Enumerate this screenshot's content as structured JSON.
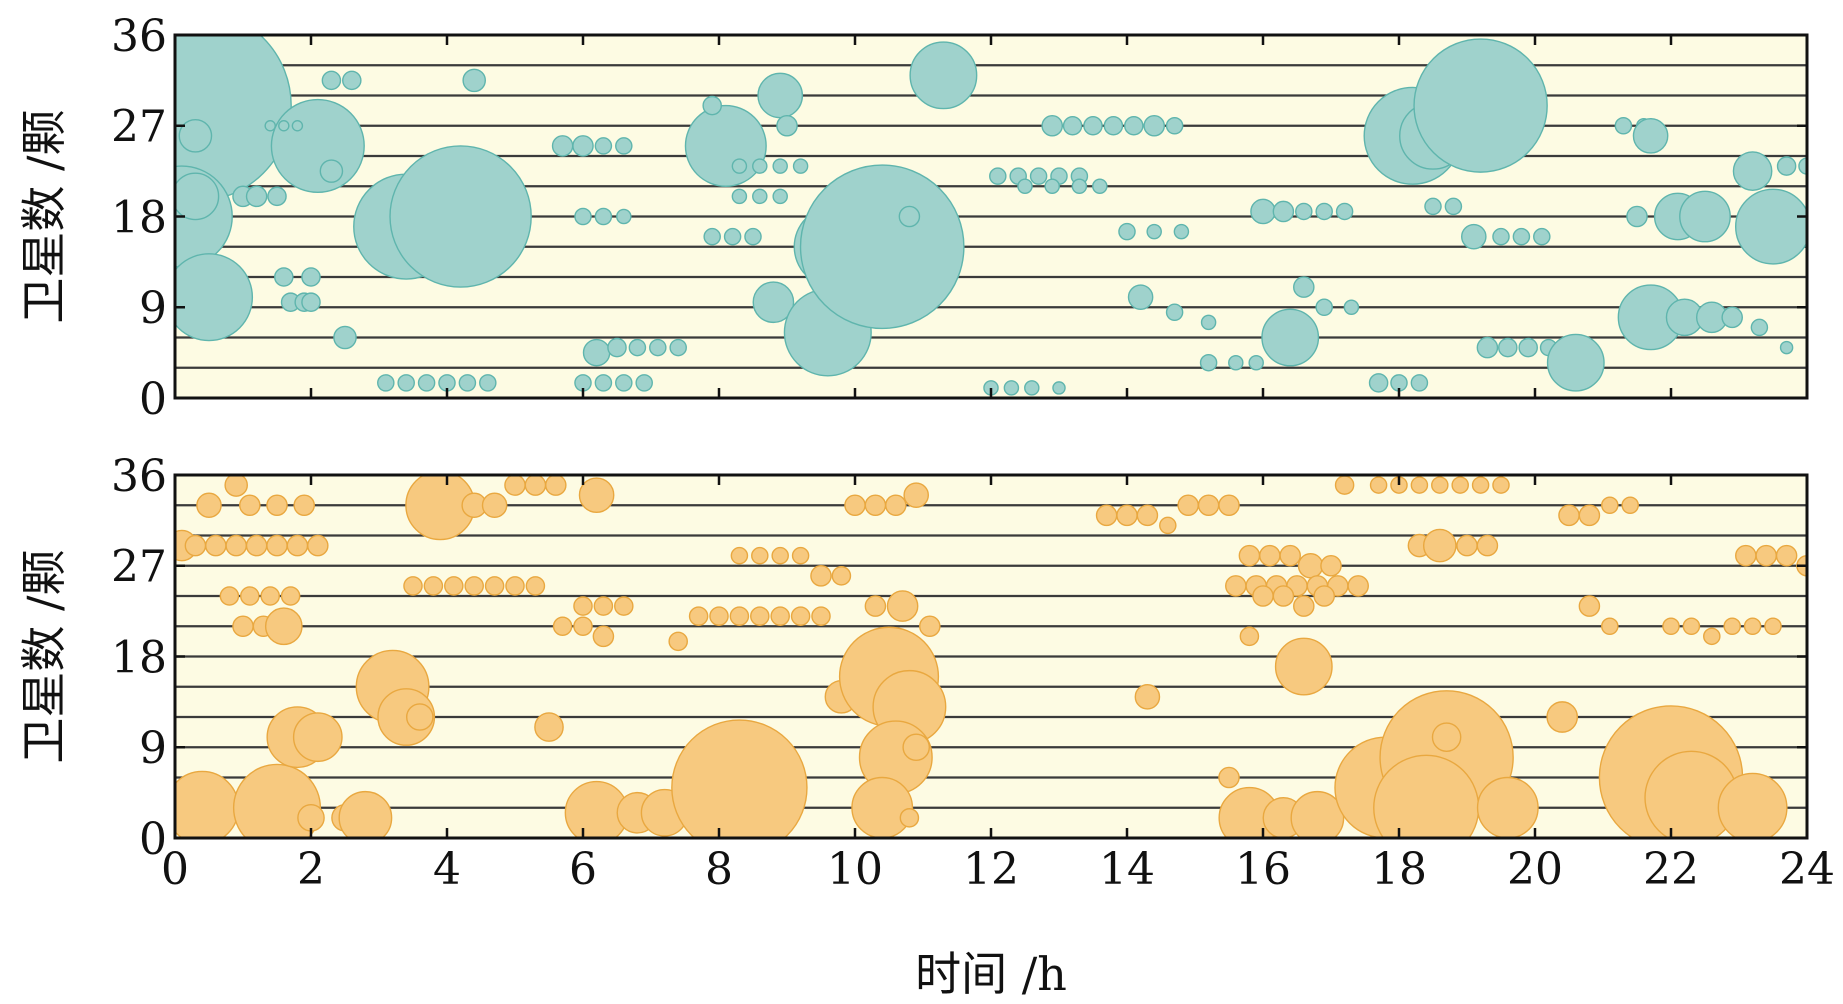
{
  "chart_data": [
    {
      "type": "scatter",
      "panel": "top",
      "xlabel": "",
      "ylabel": "卫星数 /颗",
      "xlim": [
        0,
        24
      ],
      "ylim": [
        0,
        36
      ],
      "yticks": [
        0,
        9,
        18,
        27,
        36
      ],
      "background": "#fdfbe3",
      "marker_fill": "#9fd2cc",
      "marker_stroke": "#5fb5ad",
      "grid_lines_y": [
        3,
        6,
        9,
        12,
        15,
        18,
        21,
        24,
        27,
        30,
        33
      ],
      "points": [
        [
          0.3,
          29,
          9.5
        ],
        [
          0.1,
          18,
          5
        ],
        [
          0.3,
          20,
          2.3
        ],
        [
          0.3,
          26,
          1.6
        ],
        [
          0.5,
          10,
          4.3
        ],
        [
          1.0,
          20,
          1.0
        ],
        [
          1.2,
          20,
          1.0
        ],
        [
          1.5,
          20,
          0.9
        ],
        [
          1.6,
          12,
          0.9
        ],
        [
          1.7,
          9.5,
          0.9
        ],
        [
          1.9,
          9.5,
          0.9
        ],
        [
          2.0,
          12,
          0.9
        ],
        [
          2.0,
          9.5,
          0.9
        ],
        [
          2.1,
          25,
          4.6
        ],
        [
          2.3,
          22.5,
          1.1
        ],
        [
          2.3,
          31.5,
          0.9
        ],
        [
          2.6,
          31.5,
          0.9
        ],
        [
          2.5,
          6,
          1.1
        ],
        [
          1.4,
          27,
          0.5
        ],
        [
          1.6,
          27,
          0.5
        ],
        [
          1.8,
          27,
          0.5
        ],
        [
          3.4,
          17,
          5.2
        ],
        [
          4.2,
          18,
          7.0
        ],
        [
          4.4,
          31.5,
          1.1
        ],
        [
          3.1,
          1.5,
          0.8
        ],
        [
          3.4,
          1.5,
          0.8
        ],
        [
          3.7,
          1.5,
          0.8
        ],
        [
          4.0,
          1.5,
          0.8
        ],
        [
          4.3,
          1.5,
          0.8
        ],
        [
          4.6,
          1.5,
          0.8
        ],
        [
          5.7,
          25,
          1.0
        ],
        [
          6.0,
          25,
          1.0
        ],
        [
          6.3,
          25,
          0.8
        ],
        [
          6.6,
          25,
          0.8
        ],
        [
          6.0,
          18,
          0.8
        ],
        [
          6.3,
          18,
          0.8
        ],
        [
          6.6,
          18,
          0.7
        ],
        [
          6.2,
          4.5,
          1.3
        ],
        [
          6.5,
          5,
          0.9
        ],
        [
          6.8,
          5,
          0.8
        ],
        [
          7.1,
          5,
          0.8
        ],
        [
          7.4,
          5,
          0.8
        ],
        [
          6.0,
          1.5,
          0.8
        ],
        [
          6.3,
          1.5,
          0.8
        ],
        [
          6.6,
          1.5,
          0.8
        ],
        [
          6.9,
          1.5,
          0.8
        ],
        [
          8.1,
          25,
          4.0
        ],
        [
          8.9,
          30,
          2.2
        ],
        [
          9.0,
          27,
          1.0
        ],
        [
          7.9,
          29,
          0.9
        ],
        [
          8.8,
          9.5,
          2.0
        ],
        [
          9.7,
          15,
          4.0
        ],
        [
          9.6,
          6.5,
          4.3
        ],
        [
          10.4,
          15,
          8.1
        ],
        [
          10.8,
          18,
          1.0
        ],
        [
          8.3,
          23,
          0.7
        ],
        [
          8.6,
          23,
          0.7
        ],
        [
          8.9,
          23,
          0.7
        ],
        [
          9.2,
          23,
          0.7
        ],
        [
          8.3,
          20,
          0.7
        ],
        [
          8.6,
          20,
          0.7
        ],
        [
          8.9,
          20,
          0.7
        ],
        [
          7.9,
          16,
          0.8
        ],
        [
          8.2,
          16,
          0.8
        ],
        [
          8.5,
          16,
          0.8
        ],
        [
          11.3,
          32,
          3.3
        ],
        [
          12.1,
          22,
          0.8
        ],
        [
          12.4,
          22,
          0.8
        ],
        [
          12.7,
          22,
          0.8
        ],
        [
          13.0,
          22,
          0.8
        ],
        [
          13.3,
          22,
          0.8
        ],
        [
          12.5,
          21,
          0.7
        ],
        [
          12.9,
          21,
          0.7
        ],
        [
          13.3,
          21,
          0.7
        ],
        [
          13.6,
          21,
          0.7
        ],
        [
          12.9,
          27,
          1.0
        ],
        [
          13.2,
          27,
          0.9
        ],
        [
          13.5,
          27,
          0.9
        ],
        [
          13.8,
          27,
          0.9
        ],
        [
          14.1,
          27,
          0.9
        ],
        [
          14.4,
          27,
          1.0
        ],
        [
          14.7,
          27,
          0.8
        ],
        [
          14.2,
          10,
          1.2
        ],
        [
          14.7,
          8.5,
          0.8
        ],
        [
          15.2,
          7.5,
          0.7
        ],
        [
          12.0,
          1,
          0.7
        ],
        [
          12.3,
          1,
          0.7
        ],
        [
          12.6,
          1,
          0.7
        ],
        [
          13.0,
          1,
          0.6
        ],
        [
          14.0,
          16.5,
          0.8
        ],
        [
          14.4,
          16.5,
          0.7
        ],
        [
          14.8,
          16.5,
          0.7
        ],
        [
          15.2,
          3.5,
          0.8
        ],
        [
          15.6,
          3.5,
          0.7
        ],
        [
          15.9,
          3.5,
          0.7
        ],
        [
          16.0,
          18.5,
          1.2
        ],
        [
          16.3,
          18.5,
          1.0
        ],
        [
          16.6,
          18.5,
          0.8
        ],
        [
          16.9,
          18.5,
          0.8
        ],
        [
          17.2,
          18.5,
          0.8
        ],
        [
          16.4,
          6,
          2.8
        ],
        [
          16.6,
          11,
          1.0
        ],
        [
          16.9,
          9,
          0.8
        ],
        [
          17.3,
          9,
          0.7
        ],
        [
          17.7,
          1.5,
          0.9
        ],
        [
          18.0,
          1.5,
          0.8
        ],
        [
          18.3,
          1.5,
          0.8
        ],
        [
          18.2,
          26,
          4.8
        ],
        [
          18.5,
          26,
          3.3
        ],
        [
          19.2,
          29,
          6.6
        ],
        [
          18.5,
          19,
          0.8
        ],
        [
          18.8,
          19,
          0.8
        ],
        [
          19.1,
          16,
          1.2
        ],
        [
          19.5,
          16,
          0.8
        ],
        [
          19.8,
          16,
          0.8
        ],
        [
          20.1,
          16,
          0.8
        ],
        [
          19.3,
          5,
          1.0
        ],
        [
          19.6,
          5,
          0.9
        ],
        [
          19.9,
          5,
          0.9
        ],
        [
          20.2,
          5,
          0.8
        ],
        [
          20.6,
          3.5,
          2.8
        ],
        [
          21.3,
          27,
          0.8
        ],
        [
          21.6,
          27,
          0.7
        ],
        [
          21.7,
          26,
          1.7
        ],
        [
          21.5,
          18,
          1.0
        ],
        [
          22.1,
          18,
          2.3
        ],
        [
          22.5,
          18,
          2.5
        ],
        [
          23.5,
          17,
          3.7
        ],
        [
          23.2,
          22.5,
          1.9
        ],
        [
          23.7,
          23,
          0.9
        ],
        [
          24.0,
          23,
          0.8
        ],
        [
          21.7,
          8,
          3.2
        ],
        [
          22.2,
          8,
          1.8
        ],
        [
          22.6,
          8,
          1.5
        ],
        [
          22.9,
          8,
          1.0
        ],
        [
          23.3,
          7,
          0.8
        ],
        [
          23.7,
          5,
          0.6
        ]
      ]
    },
    {
      "type": "scatter",
      "panel": "bottom",
      "xlabel": "时间 /h",
      "ylabel": "卫星数 /颗",
      "xlim": [
        0,
        24
      ],
      "ylim": [
        0,
        36
      ],
      "xticks": [
        0,
        2,
        4,
        6,
        8,
        10,
        12,
        14,
        16,
        18,
        20,
        22,
        24
      ],
      "yticks": [
        0,
        9,
        18,
        27,
        36
      ],
      "background": "#fdfbe3",
      "marker_fill": "#f7c97f",
      "marker_stroke": "#e9a840",
      "grid_lines_y": [
        3,
        6,
        9,
        12,
        15,
        18,
        21,
        24,
        27,
        30,
        33
      ],
      "points": [
        [
          0.4,
          3,
          3.6
        ],
        [
          1.5,
          3,
          4.3
        ],
        [
          2.0,
          2,
          1.3
        ],
        [
          2.5,
          2,
          1.3
        ],
        [
          2.8,
          2,
          2.6
        ],
        [
          1.8,
          10,
          3.0
        ],
        [
          2.1,
          10,
          2.4
        ],
        [
          3.2,
          15,
          3.6
        ],
        [
          3.4,
          12,
          2.8
        ],
        [
          3.6,
          12,
          1.3
        ],
        [
          0.1,
          29,
          1.5
        ],
        [
          0.3,
          29,
          1.0
        ],
        [
          0.6,
          29,
          1.0
        ],
        [
          0.9,
          29,
          1.0
        ],
        [
          1.2,
          29,
          1.0
        ],
        [
          1.5,
          29,
          1.0
        ],
        [
          1.8,
          29,
          1.0
        ],
        [
          2.1,
          29,
          1.0
        ],
        [
          0.5,
          33,
          1.2
        ],
        [
          0.9,
          35,
          1.1
        ],
        [
          1.1,
          33,
          1.0
        ],
        [
          1.5,
          33,
          1.0
        ],
        [
          1.9,
          33,
          1.0
        ],
        [
          1.0,
          21,
          1.0
        ],
        [
          1.3,
          21,
          1.0
        ],
        [
          1.6,
          21,
          1.8
        ],
        [
          0.8,
          24,
          0.9
        ],
        [
          1.1,
          24,
          0.9
        ],
        [
          1.4,
          24,
          0.9
        ],
        [
          1.7,
          24,
          0.9
        ],
        [
          3.5,
          25,
          0.9
        ],
        [
          3.8,
          25,
          0.9
        ],
        [
          4.1,
          25,
          0.9
        ],
        [
          4.4,
          25,
          0.9
        ],
        [
          4.7,
          25,
          0.9
        ],
        [
          5.0,
          25,
          0.9
        ],
        [
          5.3,
          25,
          0.9
        ],
        [
          3.9,
          33,
          3.4
        ],
        [
          4.4,
          33,
          1.2
        ],
        [
          4.7,
          33,
          1.2
        ],
        [
          5.0,
          35,
          1.0
        ],
        [
          5.3,
          35,
          1.0
        ],
        [
          5.6,
          35,
          1.0
        ],
        [
          6.2,
          34,
          1.7
        ],
        [
          5.5,
          11,
          1.4
        ],
        [
          5.7,
          21,
          0.9
        ],
        [
          6.0,
          21,
          0.9
        ],
        [
          6.3,
          20,
          1.0
        ],
        [
          6.0,
          23,
          0.9
        ],
        [
          6.3,
          23,
          0.9
        ],
        [
          6.6,
          23,
          0.9
        ],
        [
          6.2,
          2.5,
          3.1
        ],
        [
          6.8,
          2.5,
          2.0
        ],
        [
          7.2,
          2.5,
          2.3
        ],
        [
          8.3,
          5,
          6.7
        ],
        [
          9.8,
          14,
          1.6
        ],
        [
          7.4,
          19.5,
          0.9
        ],
        [
          7.7,
          22,
          0.9
        ],
        [
          8.0,
          22,
          0.9
        ],
        [
          8.3,
          22,
          0.9
        ],
        [
          8.6,
          22,
          0.9
        ],
        [
          8.9,
          22,
          0.9
        ],
        [
          9.2,
          22,
          0.9
        ],
        [
          9.5,
          22,
          0.9
        ],
        [
          8.3,
          28,
          0.8
        ],
        [
          8.6,
          28,
          0.8
        ],
        [
          8.9,
          28,
          0.8
        ],
        [
          9.2,
          28,
          0.8
        ],
        [
          9.5,
          26,
          1.0
        ],
        [
          9.8,
          26,
          0.9
        ],
        [
          10.5,
          16,
          4.9
        ],
        [
          10.8,
          13,
          3.6
        ],
        [
          10.6,
          8,
          3.6
        ],
        [
          10.4,
          3,
          3.0
        ],
        [
          10.9,
          9,
          1.3
        ],
        [
          10.8,
          2,
          0.9
        ],
        [
          10.0,
          33,
          1.0
        ],
        [
          10.3,
          33,
          1.0
        ],
        [
          10.6,
          33,
          1.0
        ],
        [
          10.9,
          34,
          1.2
        ],
        [
          10.7,
          23,
          1.5
        ],
        [
          10.3,
          23,
          1.0
        ],
        [
          11.1,
          21,
          1.0
        ],
        [
          14.3,
          14,
          1.2
        ],
        [
          15.5,
          6,
          1.0
        ],
        [
          15.8,
          2,
          3.0
        ],
        [
          16.3,
          2,
          2.0
        ],
        [
          16.8,
          2,
          2.6
        ],
        [
          16.6,
          17,
          2.8
        ],
        [
          15.8,
          20,
          0.9
        ],
        [
          13.7,
          32,
          1.0
        ],
        [
          14.0,
          32,
          1.0
        ],
        [
          14.3,
          32,
          1.0
        ],
        [
          14.6,
          31,
          0.8
        ],
        [
          14.9,
          33,
          1.0
        ],
        [
          15.2,
          33,
          1.0
        ],
        [
          15.5,
          33,
          1.0
        ],
        [
          15.8,
          28,
          1.0
        ],
        [
          16.1,
          28,
          1.0
        ],
        [
          16.4,
          28,
          1.0
        ],
        [
          16.7,
          27,
          1.2
        ],
        [
          17.0,
          27,
          1.0
        ],
        [
          15.6,
          25,
          1.0
        ],
        [
          15.9,
          25,
          1.0
        ],
        [
          16.2,
          25,
          1.0
        ],
        [
          16.5,
          25,
          1.0
        ],
        [
          16.8,
          25,
          1.0
        ],
        [
          17.1,
          25,
          1.0
        ],
        [
          17.4,
          25,
          1.0
        ],
        [
          16.0,
          24,
          1.0
        ],
        [
          16.3,
          24,
          1.0
        ],
        [
          16.6,
          23,
          1.0
        ],
        [
          16.9,
          24,
          1.0
        ],
        [
          17.2,
          35,
          0.9
        ],
        [
          17.7,
          35,
          0.8
        ],
        [
          18.0,
          35,
          0.8
        ],
        [
          18.3,
          35,
          0.8
        ],
        [
          18.6,
          35,
          0.8
        ],
        [
          18.9,
          35,
          0.8
        ],
        [
          19.2,
          35,
          0.8
        ],
        [
          19.5,
          35,
          0.8
        ],
        [
          17.8,
          5,
          5.0
        ],
        [
          18.7,
          8,
          6.6
        ],
        [
          18.4,
          3,
          5.2
        ],
        [
          19.6,
          3,
          3.0
        ],
        [
          18.7,
          10,
          1.4
        ],
        [
          18.3,
          29,
          1.1
        ],
        [
          18.6,
          29,
          1.6
        ],
        [
          19.0,
          29,
          1.0
        ],
        [
          19.3,
          29,
          1.0
        ],
        [
          20.4,
          12,
          1.5
        ],
        [
          22.0,
          6,
          7.1
        ],
        [
          22.3,
          4,
          4.6
        ],
        [
          23.2,
          3,
          3.4
        ],
        [
          20.8,
          23,
          1.0
        ],
        [
          21.1,
          21,
          0.8
        ],
        [
          20.5,
          32,
          1.0
        ],
        [
          20.8,
          32,
          1.0
        ],
        [
          21.1,
          33,
          0.8
        ],
        [
          21.4,
          33,
          0.8
        ],
        [
          23.1,
          28,
          1.0
        ],
        [
          23.4,
          28,
          1.0
        ],
        [
          23.7,
          28,
          1.0
        ],
        [
          24.0,
          27,
          1.0
        ],
        [
          22.0,
          21,
          0.8
        ],
        [
          22.3,
          21,
          0.8
        ],
        [
          22.6,
          20,
          0.8
        ],
        [
          22.9,
          21,
          0.8
        ],
        [
          23.2,
          21,
          0.8
        ],
        [
          23.5,
          21,
          0.8
        ]
      ]
    }
  ]
}
